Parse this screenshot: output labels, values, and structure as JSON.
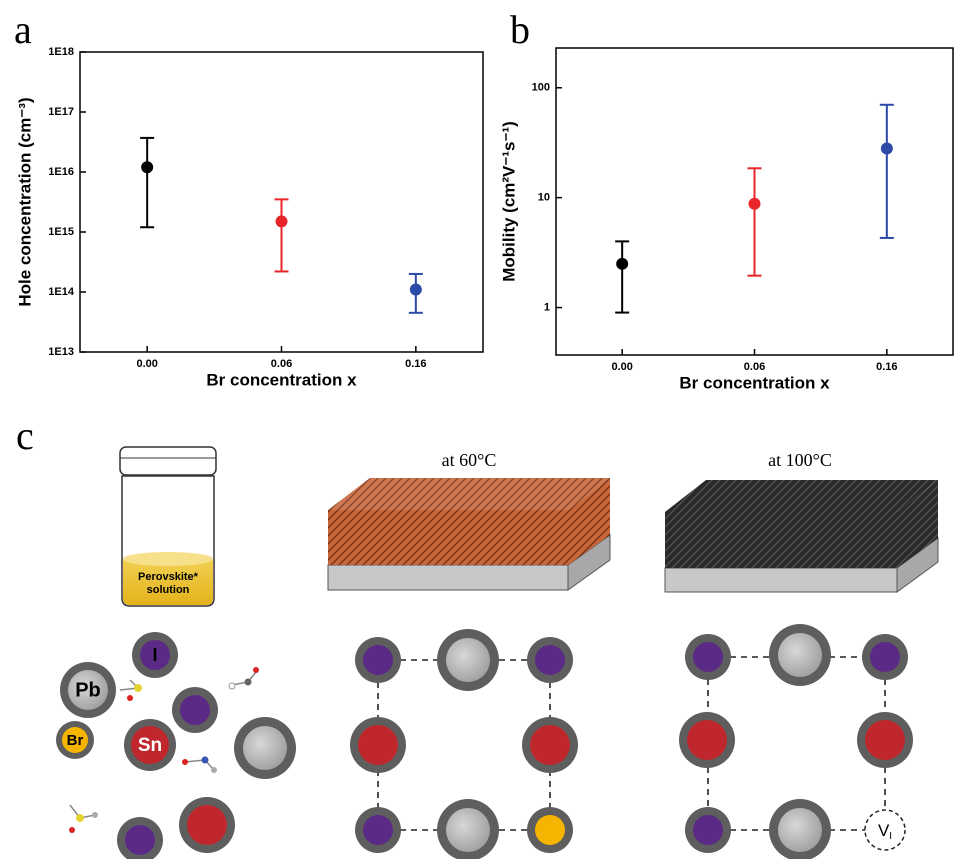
{
  "chart_data": [
    {
      "type": "errorbar",
      "panel_label": "a",
      "y_label": "Hole concentration (cm⁻³)",
      "x_label": "Br concentration x",
      "categories": [
        "0.00",
        "0.06",
        "0.16"
      ],
      "values": [
        1.2e+16,
        1500000000000000.0,
        110000000000000.0
      ],
      "lower": [
        1200000000000000.0,
        220000000000000.0,
        45000000000000.0
      ],
      "upper": [
        3.7e+16,
        3500000000000000.0,
        200000000000000.0
      ],
      "colors": [
        "#000000",
        "#e8262a",
        "#2b4aa8"
      ],
      "log_y": true,
      "ylim": [
        10000000000000.0,
        1e+18
      ],
      "yticks": [
        {
          "value": 10000000000000.0,
          "label": "1E13"
        },
        {
          "value": 100000000000000.0,
          "label": "1E14"
        },
        {
          "value": 1000000000000000.0,
          "label": "1E15"
        },
        {
          "value": 1e+16,
          "label": "1E16"
        },
        {
          "value": 1e+17,
          "label": "1E17"
        },
        {
          "value": 1e+18,
          "label": "1E18"
        }
      ]
    },
    {
      "type": "errorbar",
      "panel_label": "b",
      "y_label": "Mobility (cm²V⁻¹s⁻¹)",
      "x_label": "Br concentration x",
      "categories": [
        "0.00",
        "0.06",
        "0.16"
      ],
      "values": [
        2.5,
        8.8,
        28
      ],
      "lower": [
        0.9,
        1.95,
        4.3
      ],
      "upper": [
        4.0,
        18.5,
        70
      ],
      "colors": [
        "#000000",
        "#e8262a",
        "#2b4aa8"
      ],
      "log_y": true,
      "ylim": [
        0.37,
        230
      ],
      "yticks": [
        1,
        10,
        100
      ]
    }
  ],
  "diagram": {
    "panel_label": "c",
    "vial_label": [
      "Perovskite*",
      "solution"
    ],
    "stages": [
      "at 60°C",
      "at 100°C"
    ],
    "ions": {
      "iodide": "I",
      "lead": "Pb",
      "bromide": "Br",
      "tin": "Sn"
    },
    "vacancy": {
      "main": "V",
      "sub": "I"
    }
  }
}
